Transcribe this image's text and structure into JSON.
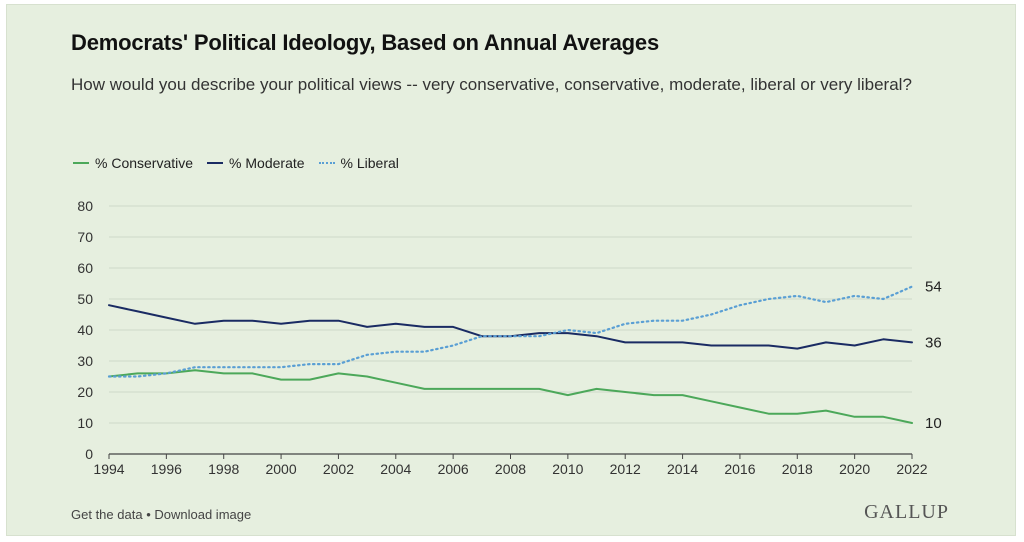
{
  "chart_data": {
    "type": "line",
    "title": "Democrats' Political Ideology, Based on Annual Averages",
    "subtitle": "How would you describe your political views -- very conservative, conservative, moderate, liberal or very liberal?",
    "x": [
      1994,
      1995,
      1996,
      1997,
      1998,
      1999,
      2000,
      2001,
      2002,
      2003,
      2004,
      2005,
      2006,
      2007,
      2008,
      2009,
      2010,
      2011,
      2012,
      2013,
      2014,
      2015,
      2016,
      2017,
      2018,
      2019,
      2020,
      2021,
      2022
    ],
    "x_ticks": [
      1994,
      1996,
      1998,
      2000,
      2002,
      2004,
      2006,
      2008,
      2010,
      2012,
      2014,
      2016,
      2018,
      2020,
      2022
    ],
    "y_ticks": [
      0,
      10,
      20,
      30,
      40,
      50,
      60,
      70,
      80
    ],
    "ylim": [
      0,
      80
    ],
    "xlim": [
      1994,
      2022
    ],
    "grid": true,
    "legend_position": "top-left",
    "series": [
      {
        "name": "% Conservative",
        "color": "#4ca85a",
        "style": "solid",
        "end_label": "10",
        "values": [
          25,
          26,
          26,
          27,
          26,
          26,
          24,
          24,
          26,
          25,
          23,
          21,
          21,
          21,
          21,
          21,
          19,
          21,
          20,
          19,
          19,
          17,
          15,
          13,
          13,
          14,
          12,
          12,
          10
        ]
      },
      {
        "name": "% Moderate",
        "color": "#1a2b63",
        "style": "solid",
        "end_label": "36",
        "values": [
          48,
          46,
          44,
          42,
          43,
          43,
          42,
          43,
          43,
          41,
          42,
          41,
          41,
          38,
          38,
          39,
          39,
          38,
          36,
          36,
          36,
          35,
          35,
          35,
          34,
          36,
          35,
          37,
          36
        ]
      },
      {
        "name": "% Liberal",
        "color": "#5a9fd4",
        "style": "dotted",
        "end_label": "54",
        "values": [
          25,
          25,
          26,
          28,
          28,
          28,
          28,
          29,
          29,
          32,
          33,
          33,
          35,
          38,
          38,
          38,
          40,
          39,
          42,
          43,
          43,
          45,
          48,
          50,
          51,
          49,
          51,
          50,
          54
        ]
      }
    ]
  },
  "footer": {
    "get_data": "Get the data",
    "separator": "•",
    "download": "Download image",
    "brand": "GALLUP"
  }
}
